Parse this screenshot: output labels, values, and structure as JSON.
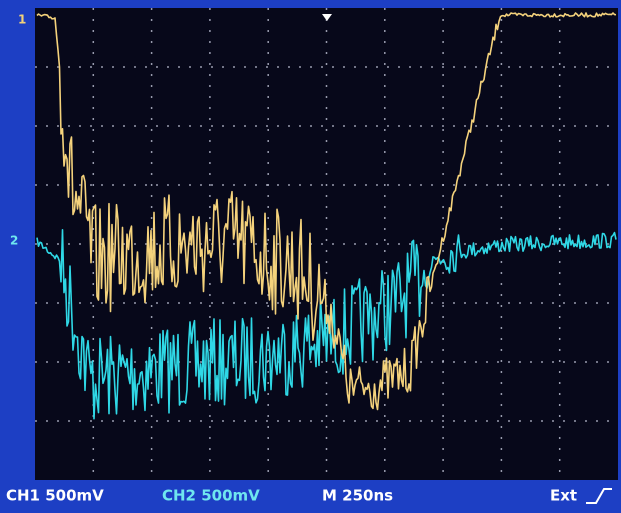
{
  "markers": {
    "ch1": "1",
    "ch2": "2"
  },
  "status_bar": {
    "ch1": "CH1 500mV",
    "ch2": "CH2 500mV",
    "timebase": "M 250ns",
    "trigger": "Ext"
  }
}
